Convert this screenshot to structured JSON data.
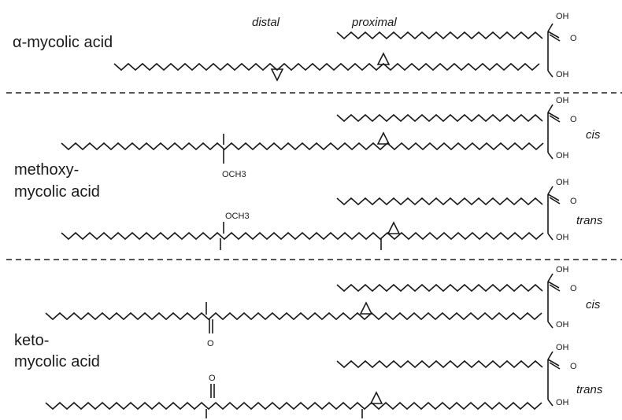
{
  "alpha": {
    "name": "α-mycolic acid",
    "distal": "distal",
    "proximal": "proximal"
  },
  "methoxy": {
    "name_line1": "methoxy-",
    "name_line2": "mycolic acid",
    "cis": "cis",
    "trans": "trans",
    "substituent": "OCH3"
  },
  "keto": {
    "name_line1": "keto-",
    "name_line2": "mycolic acid",
    "cis": "cis",
    "trans": "trans",
    "substituent": "O"
  },
  "head_group": {
    "hydroxyl": "OH",
    "carbonyl_o": "O"
  }
}
